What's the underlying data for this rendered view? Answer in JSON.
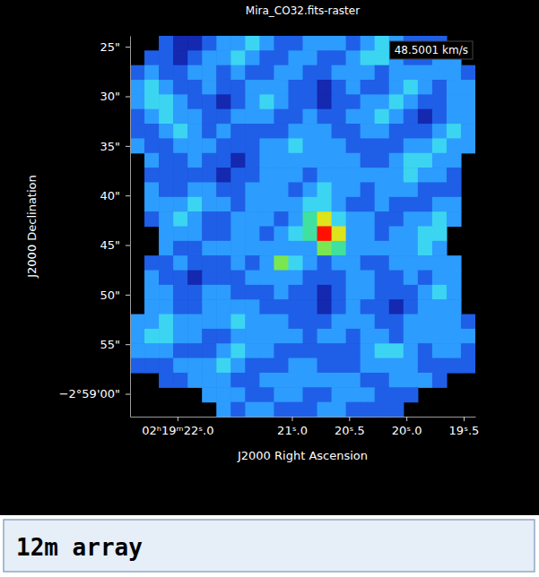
{
  "chart_data": {
    "type": "heatmap",
    "title": "Mira_CO32.fits-raster",
    "x_label": "J2000 Right Ascension",
    "y_label": "J2000 Declination",
    "annotations": [
      "48.5001 km/s"
    ],
    "xlim": [
      22.414,
      19.398
    ],
    "ylim": [
      62.3,
      23.9
    ],
    "xticks": [
      {
        "value": 22.0,
        "label": "02ʰ19ᵐ22ˢ.0"
      },
      {
        "value": 21.0,
        "label": "21ˢ.0"
      },
      {
        "value": 20.5,
        "label": "20ˢ.5"
      },
      {
        "value": 20.0,
        "label": "20ˢ.0"
      },
      {
        "value": 19.5,
        "label": "19ˢ.5"
      }
    ],
    "yticks": [
      {
        "value": 25,
        "label": "25\""
      },
      {
        "value": 30,
        "label": "30\""
      },
      {
        "value": 35,
        "label": "35\""
      },
      {
        "value": 40,
        "label": "40\""
      },
      {
        "value": 45,
        "label": "45\""
      },
      {
        "value": 50,
        "label": "50\""
      },
      {
        "value": 55,
        "label": "55\""
      },
      {
        "value": 60,
        "label": "−2°59'00\""
      }
    ],
    "grid": false,
    "zlim": [
      0,
      10
    ],
    "cells": [
      [
        null,
        null,
        2,
        1,
        1,
        2,
        3,
        3,
        4,
        3,
        2,
        2,
        3,
        3,
        3,
        2,
        3,
        4,
        3,
        2,
        2,
        2,
        null,
        null
      ],
      [
        null,
        2,
        2,
        1,
        2,
        3,
        3,
        4,
        3,
        2,
        2,
        3,
        3,
        2,
        2,
        3,
        4,
        4,
        3,
        2,
        2,
        3,
        3,
        null
      ],
      [
        2,
        3,
        2,
        2,
        3,
        3,
        2,
        3,
        2,
        2,
        3,
        3,
        2,
        2,
        3,
        3,
        3,
        2,
        3,
        3,
        3,
        3,
        3,
        2
      ],
      [
        3,
        4,
        3,
        2,
        2,
        3,
        2,
        2,
        3,
        3,
        3,
        2,
        2,
        1,
        2,
        3,
        2,
        2,
        3,
        4,
        3,
        2,
        3,
        3
      ],
      [
        3,
        4,
        4,
        3,
        2,
        2,
        1,
        2,
        3,
        4,
        3,
        2,
        2,
        1,
        2,
        2,
        3,
        3,
        4,
        3,
        2,
        2,
        3,
        3
      ],
      [
        2,
        3,
        4,
        3,
        3,
        2,
        2,
        3,
        3,
        3,
        2,
        2,
        3,
        2,
        2,
        3,
        3,
        4,
        3,
        2,
        1,
        2,
        3,
        3
      ],
      [
        2,
        2,
        3,
        4,
        3,
        2,
        3,
        2,
        2,
        2,
        2,
        3,
        3,
        3,
        2,
        2,
        3,
        3,
        2,
        2,
        2,
        3,
        4,
        3
      ],
      [
        3,
        2,
        2,
        3,
        3,
        3,
        2,
        2,
        2,
        3,
        3,
        4,
        3,
        3,
        3,
        2,
        2,
        2,
        2,
        3,
        3,
        4,
        3,
        3
      ],
      [
        null,
        3,
        2,
        2,
        3,
        2,
        2,
        1,
        2,
        3,
        3,
        3,
        3,
        3,
        3,
        3,
        2,
        2,
        3,
        4,
        4,
        3,
        3,
        null
      ],
      [
        null,
        2,
        2,
        2,
        2,
        2,
        1,
        2,
        2,
        3,
        3,
        3,
        2,
        3,
        3,
        3,
        3,
        3,
        3,
        4,
        3,
        3,
        2,
        null
      ],
      [
        null,
        3,
        2,
        2,
        3,
        3,
        2,
        2,
        3,
        3,
        3,
        2,
        3,
        4,
        3,
        3,
        2,
        3,
        3,
        3,
        2,
        2,
        2,
        null
      ],
      [
        null,
        3,
        3,
        3,
        4,
        3,
        3,
        2,
        3,
        3,
        3,
        3,
        4,
        4,
        3,
        2,
        2,
        3,
        2,
        2,
        2,
        3,
        3,
        null
      ],
      [
        null,
        2,
        3,
        4,
        3,
        2,
        2,
        3,
        3,
        3,
        2,
        3,
        5,
        7,
        4,
        3,
        3,
        2,
        2,
        3,
        3,
        4,
        3,
        null
      ],
      [
        null,
        null,
        3,
        3,
        3,
        2,
        2,
        3,
        3,
        2,
        3,
        4,
        5,
        9,
        7,
        3,
        3,
        2,
        3,
        3,
        4,
        4,
        null,
        null
      ],
      [
        null,
        null,
        3,
        2,
        2,
        3,
        3,
        3,
        3,
        3,
        3,
        3,
        3,
        6,
        5,
        3,
        3,
        3,
        3,
        3,
        4,
        3,
        null,
        null
      ],
      [
        null,
        2,
        2,
        3,
        2,
        2,
        2,
        3,
        2,
        3,
        6,
        4,
        3,
        2,
        3,
        3,
        2,
        2,
        3,
        3,
        3,
        3,
        3,
        null
      ],
      [
        null,
        3,
        2,
        2,
        1,
        2,
        2,
        2,
        3,
        3,
        3,
        3,
        2,
        2,
        2,
        3,
        3,
        2,
        2,
        3,
        2,
        3,
        3,
        null
      ],
      [
        null,
        3,
        3,
        2,
        2,
        3,
        3,
        2,
        2,
        2,
        3,
        2,
        2,
        1,
        2,
        3,
        3,
        2,
        2,
        2,
        3,
        4,
        3,
        null
      ],
      [
        null,
        3,
        3,
        2,
        2,
        3,
        3,
        3,
        3,
        2,
        2,
        2,
        2,
        1,
        2,
        3,
        2,
        2,
        1,
        2,
        3,
        3,
        3,
        null
      ],
      [
        3,
        3,
        4,
        3,
        3,
        3,
        3,
        4,
        3,
        3,
        3,
        2,
        2,
        2,
        3,
        3,
        3,
        2,
        2,
        3,
        3,
        3,
        3,
        2
      ],
      [
        3,
        4,
        4,
        3,
        3,
        2,
        2,
        3,
        3,
        3,
        3,
        3,
        2,
        3,
        3,
        2,
        3,
        3,
        2,
        3,
        3,
        3,
        3,
        3
      ],
      [
        3,
        3,
        3,
        2,
        2,
        2,
        3,
        4,
        3,
        3,
        2,
        2,
        2,
        2,
        2,
        2,
        3,
        4,
        4,
        3,
        2,
        3,
        3,
        2
      ],
      [
        2,
        2,
        2,
        3,
        3,
        3,
        4,
        3,
        2,
        2,
        2,
        3,
        3,
        2,
        2,
        2,
        3,
        3,
        3,
        3,
        2,
        2,
        2,
        2
      ],
      [
        null,
        null,
        2,
        2,
        3,
        3,
        3,
        2,
        2,
        3,
        3,
        3,
        3,
        3,
        3,
        3,
        2,
        2,
        3,
        3,
        3,
        2,
        null,
        null
      ],
      [
        null,
        null,
        null,
        null,
        null,
        3,
        3,
        3,
        2,
        2,
        3,
        3,
        2,
        2,
        3,
        3,
        3,
        2,
        2,
        2,
        null,
        null,
        null,
        null
      ],
      [
        null,
        null,
        null,
        null,
        null,
        null,
        3,
        2,
        3,
        3,
        2,
        2,
        2,
        3,
        3,
        2,
        2,
        2,
        2,
        null,
        null,
        null,
        null,
        null
      ]
    ]
  },
  "caption": "12m array"
}
